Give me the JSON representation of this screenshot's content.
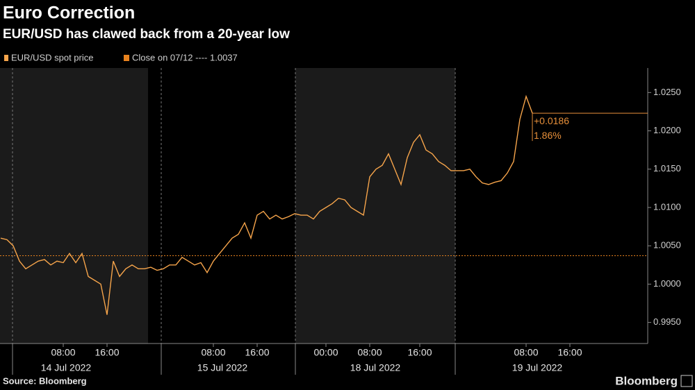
{
  "chart_data": {
    "type": "line",
    "title": "Euro Correction",
    "subtitle": "EUR/USD has clawed back from a 20-year low",
    "source": "Source: Bloomberg",
    "brand": "Bloomberg",
    "x": [
      null,
      null,
      null,
      null,
      null,
      null,
      null,
      null,
      null,
      null,
      "08:00",
      null,
      null,
      null,
      null,
      null,
      null,
      "16:00",
      null,
      null,
      null,
      null,
      null,
      null,
      null,
      null,
      null,
      null,
      null,
      null,
      null,
      null,
      null,
      null,
      "08:00",
      null,
      null,
      null,
      null,
      null,
      null,
      "16:00",
      null,
      null,
      null,
      null,
      null,
      null,
      null,
      null,
      null,
      null,
      "00:00",
      null,
      null,
      null,
      null,
      null,
      null,
      "08:00",
      null,
      null,
      null,
      null,
      null,
      null,
      null,
      "16:00",
      null,
      null,
      null,
      null,
      null,
      null,
      null,
      null,
      null,
      null,
      null,
      null,
      null,
      null,
      null,
      null,
      "08:00",
      null,
      null,
      null,
      null,
      null,
      null,
      "16:00"
    ],
    "x_groups": [
      "14 Jul 2022",
      "15 Jul 2022",
      "18 Jul 2022",
      "19 Jul 2022"
    ],
    "series": [
      {
        "name": "EUR/USD spot price",
        "color": "#f7a54b",
        "values": [
          1.006,
          1.0058,
          1.005,
          1.003,
          1.002,
          1.0025,
          1.003,
          1.0032,
          1.0025,
          1.003,
          1.0028,
          1.004,
          1.0028,
          1.004,
          1.001,
          1.0005,
          1.0,
          0.996,
          1.003,
          1.001,
          1.002,
          1.0025,
          1.002,
          1.002,
          1.0022,
          1.0018,
          1.002,
          1.0025,
          1.0025,
          1.0035,
          1.003,
          1.0025,
          1.0028,
          1.0015,
          1.003,
          1.004,
          1.005,
          1.006,
          1.0065,
          1.008,
          1.006,
          1.009,
          1.0095,
          1.0085,
          1.009,
          1.0085,
          1.0088,
          1.0092,
          1.009,
          1.009,
          1.0085,
          1.0095,
          1.01,
          1.0105,
          1.0112,
          1.011,
          1.01,
          1.0095,
          1.009,
          1.014,
          1.015,
          1.0155,
          1.017,
          1.015,
          1.013,
          1.0165,
          1.0185,
          1.0195,
          1.0175,
          1.017,
          1.016,
          1.0155,
          1.0148,
          1.0148,
          1.0148,
          1.015,
          1.014,
          1.0132,
          1.013,
          1.0133,
          1.0135,
          1.0145,
          1.016,
          1.0215,
          1.0245,
          1.0223,
          null,
          null,
          null,
          null,
          null,
          null
        ]
      }
    ],
    "reference": {
      "label": "Close on 07/12 ---- 1.0037",
      "value": 1.0037,
      "color": "#e8821e"
    },
    "change": {
      "value": 0.0186,
      "label": "+0.0186"
    },
    "change_percent": {
      "value": 1.86,
      "label": "1.86%"
    },
    "ylim": [
      0.99225,
      1.0282
    ],
    "yticks": [
      {
        "value": 0.995,
        "label": "0.9950"
      },
      {
        "value": 1.0,
        "label": "1.0000"
      },
      {
        "value": 1.005,
        "label": "1.0050"
      },
      {
        "value": 1.01,
        "label": "1.0100"
      },
      {
        "value": 1.015,
        "label": "1.0150"
      },
      {
        "value": 1.02,
        "label": "1.0200"
      },
      {
        "value": 1.025,
        "label": "1.0250"
      }
    ],
    "grid": false
  }
}
